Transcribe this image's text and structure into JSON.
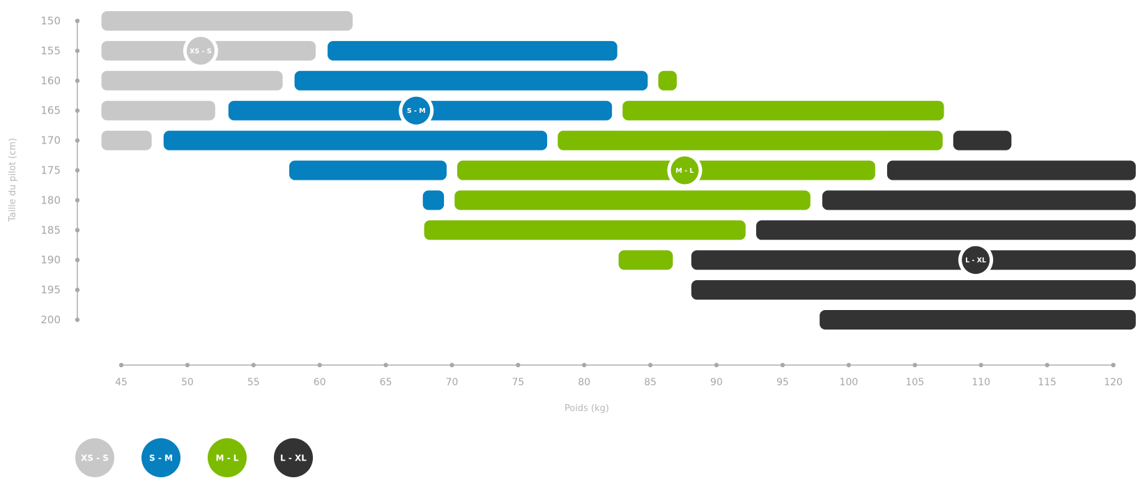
{
  "chart_data": {
    "type": "bar",
    "orientation": "horizontal-range",
    "xlabel": "Poids (kg)",
    "ylabel": "Taille du pilot (cm)",
    "x_ticks": [
      45,
      50,
      55,
      60,
      65,
      70,
      75,
      80,
      85,
      90,
      95,
      100,
      105,
      110,
      115,
      120
    ],
    "y_ticks": [
      150,
      155,
      160,
      165,
      170,
      175,
      180,
      185,
      190,
      195,
      200
    ],
    "xlim": [
      45,
      120
    ],
    "ylim": [
      150,
      200
    ],
    "grid": false,
    "legend": "bottom-left",
    "series": [
      {
        "name": "XS - S",
        "color": "#c8c8c8",
        "badge": {
          "height": 155,
          "weight": 51
        },
        "ranges": [
          {
            "height": 150,
            "from": 43.5,
            "to": 62.5
          },
          {
            "height": 155,
            "from": 43.5,
            "to": 59.7
          },
          {
            "height": 160,
            "from": 43.5,
            "to": 57.2
          },
          {
            "height": 165,
            "from": 43.5,
            "to": 52.1
          },
          {
            "height": 170,
            "from": 43.5,
            "to": 47.3
          }
        ]
      },
      {
        "name": "S - M",
        "color": "#0680bf",
        "badge": {
          "height": 165,
          "weight": 67.3
        },
        "ranges": [
          {
            "height": 155,
            "from": 60.6,
            "to": 82.5
          },
          {
            "height": 160,
            "from": 58.1,
            "to": 84.8
          },
          {
            "height": 165,
            "from": 53.1,
            "to": 82.1
          },
          {
            "height": 170,
            "from": 48.2,
            "to": 77.2
          },
          {
            "height": 175,
            "from": 57.7,
            "to": 69.6
          },
          {
            "height": 180,
            "from": 67.8,
            "to": 69.4
          }
        ]
      },
      {
        "name": "M - L",
        "color": "#7dbb00",
        "badge": {
          "height": 175,
          "weight": 87.6
        },
        "ranges": [
          {
            "height": 160,
            "from": 85.6,
            "to": 87.0
          },
          {
            "height": 165,
            "from": 82.9,
            "to": 107.2
          },
          {
            "height": 170,
            "from": 78.0,
            "to": 107.1
          },
          {
            "height": 175,
            "from": 70.4,
            "to": 102.0
          },
          {
            "height": 180,
            "from": 70.2,
            "to": 97.1
          },
          {
            "height": 185,
            "from": 67.9,
            "to": 92.2
          },
          {
            "height": 190,
            "from": 82.6,
            "to": 86.7
          }
        ]
      },
      {
        "name": "L - XL",
        "color": "#333333",
        "badge": {
          "height": 190,
          "weight": 109.6
        },
        "ranges": [
          {
            "height": 170,
            "from": 107.9,
            "to": 112.3
          },
          {
            "height": 175,
            "from": 102.9,
            "to": 121.7
          },
          {
            "height": 180,
            "from": 98.0,
            "to": 121.7
          },
          {
            "height": 185,
            "from": 93.0,
            "to": 121.7
          },
          {
            "height": 190,
            "from": 88.1,
            "to": 121.7
          },
          {
            "height": 195,
            "from": 88.1,
            "to": 121.7
          },
          {
            "height": 200,
            "from": 97.8,
            "to": 121.7
          }
        ]
      }
    ]
  }
}
